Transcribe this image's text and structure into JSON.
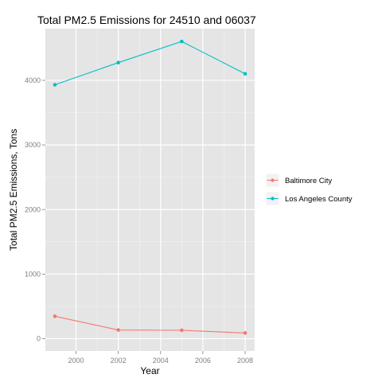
{
  "chart_data": {
    "type": "line",
    "title": "Total PM2.5 Emissions for 24510 and 06037",
    "xlabel": "Year",
    "ylabel": "Total PM2.5 Emissions, Tons",
    "x": [
      1999,
      2002,
      2005,
      2008
    ],
    "xlim": [
      1998.55,
      2008.45
    ],
    "ylim": [
      -190,
      4800
    ],
    "x_ticks": [
      2000,
      2002,
      2004,
      2006,
      2008
    ],
    "y_ticks": [
      0,
      1000,
      2000,
      3000,
      4000
    ],
    "grid": true,
    "legend_position": "right",
    "series": [
      {
        "name": "Baltimore City",
        "color": "#F8766D",
        "values": [
          346.82,
          134.31,
          130.43,
          88.28
        ]
      },
      {
        "name": "Los Angeles County",
        "color": "#00BFC4",
        "values": [
          3931.12,
          4274.03,
          4601.41,
          4101.32
        ]
      }
    ],
    "panel_background": "#E5E5E5",
    "grid_color": "#FFFFFF"
  }
}
